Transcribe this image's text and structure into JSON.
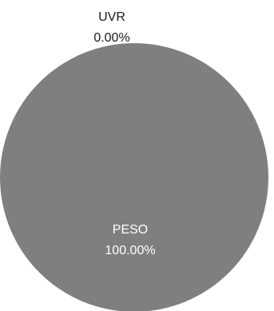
{
  "chart_data": {
    "type": "pie",
    "title": "",
    "slices": [
      {
        "label": "UVR",
        "value": 0.0,
        "display": "0.00%",
        "color": "#7f7f7f",
        "label_color": "#1a1a1a"
      },
      {
        "label": "PESO",
        "value": 100.0,
        "display": "100.00%",
        "color": "#7f7f7f",
        "label_color": "#ffffff"
      }
    ],
    "legend": "none"
  }
}
